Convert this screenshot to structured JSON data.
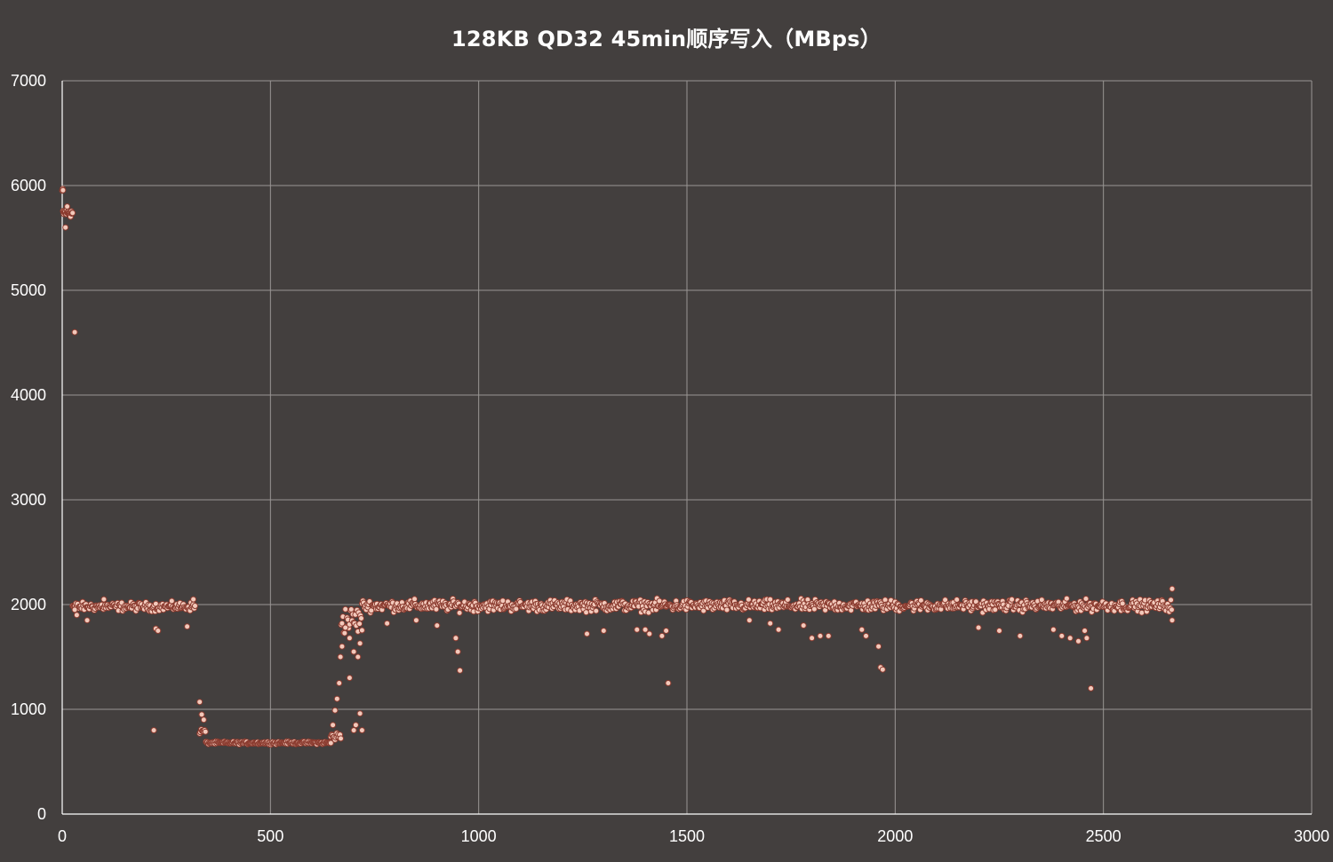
{
  "chart_data": {
    "type": "scatter",
    "title": "128KB QD32 45min顺序写入（MBps）",
    "xlabel": "",
    "ylabel": "",
    "xlim": [
      0,
      3000
    ],
    "ylim": [
      0,
      7000
    ],
    "x_ticks": [
      "0",
      "500",
      "1000",
      "1500",
      "2000",
      "2500",
      "3000"
    ],
    "y_ticks": [
      "0",
      "1000",
      "2000",
      "3000",
      "4000",
      "5000",
      "6000",
      "7000"
    ],
    "grid": true,
    "legend": "none",
    "colors": {
      "background": "#433f3e",
      "point_fill": "#f2c9bb",
      "point_edge": "#8a3a2e",
      "grid": "#9a9694"
    },
    "segments": [
      {
        "x_range": [
          0,
          2
        ],
        "base": 5950,
        "spread": 30,
        "step": 1
      },
      {
        "x_range": [
          2,
          25
        ],
        "base": 5740,
        "spread": 60,
        "step": 1
      },
      {
        "x_range": [
          25,
          320
        ],
        "base": 1980,
        "spread": 60,
        "step": 2
      },
      {
        "x_range": [
          330,
          345
        ],
        "base": 790,
        "spread": 40,
        "step": 2
      },
      {
        "x_range": [
          345,
          645
        ],
        "base": 680,
        "spread": 18,
        "step": 2
      },
      {
        "x_range": [
          645,
          670
        ],
        "base": 740,
        "spread": 60,
        "step": 2
      },
      {
        "x_range": [
          670,
          720
        ],
        "base": 1850,
        "spread": 200,
        "step": 2
      },
      {
        "x_range": [
          720,
          2665
        ],
        "base": 1990,
        "spread": 80,
        "step": 2
      }
    ],
    "outliers": [
      [
        8,
        5600
      ],
      [
        12,
        5800
      ],
      [
        30,
        4600
      ],
      [
        30,
        1950
      ],
      [
        35,
        1900
      ],
      [
        60,
        1850
      ],
      [
        100,
        2050
      ],
      [
        220,
        800
      ],
      [
        225,
        1770
      ],
      [
        230,
        1750
      ],
      [
        300,
        1790
      ],
      [
        315,
        2050
      ],
      [
        330,
        1070
      ],
      [
        335,
        950
      ],
      [
        340,
        900
      ],
      [
        650,
        850
      ],
      [
        655,
        990
      ],
      [
        660,
        1100
      ],
      [
        665,
        1250
      ],
      [
        668,
        1500
      ],
      [
        672,
        1600
      ],
      [
        680,
        1780
      ],
      [
        690,
        1300
      ],
      [
        700,
        800
      ],
      [
        705,
        850
      ],
      [
        715,
        960
      ],
      [
        720,
        800
      ],
      [
        690,
        1680
      ],
      [
        700,
        1550
      ],
      [
        710,
        1500
      ],
      [
        715,
        1630
      ],
      [
        780,
        1820
      ],
      [
        850,
        1850
      ],
      [
        900,
        1800
      ],
      [
        950,
        1550
      ],
      [
        955,
        1370
      ],
      [
        945,
        1680
      ],
      [
        1260,
        1720
      ],
      [
        1300,
        1750
      ],
      [
        1380,
        1760
      ],
      [
        1400,
        1760
      ],
      [
        1410,
        1720
      ],
      [
        1440,
        1700
      ],
      [
        1450,
        1750
      ],
      [
        1455,
        1250
      ],
      [
        1650,
        1850
      ],
      [
        1700,
        1820
      ],
      [
        1720,
        1760
      ],
      [
        1780,
        1800
      ],
      [
        1800,
        1680
      ],
      [
        1820,
        1700
      ],
      [
        1840,
        1700
      ],
      [
        1920,
        1760
      ],
      [
        1930,
        1700
      ],
      [
        1960,
        1600
      ],
      [
        1965,
        1400
      ],
      [
        1970,
        1380
      ],
      [
        2200,
        1780
      ],
      [
        2250,
        1750
      ],
      [
        2300,
        1700
      ],
      [
        2380,
        1760
      ],
      [
        2400,
        1700
      ],
      [
        2420,
        1680
      ],
      [
        2440,
        1650
      ],
      [
        2455,
        1750
      ],
      [
        2460,
        1680
      ],
      [
        2470,
        1200
      ],
      [
        2665,
        1850
      ],
      [
        2665,
        2150
      ]
    ]
  }
}
